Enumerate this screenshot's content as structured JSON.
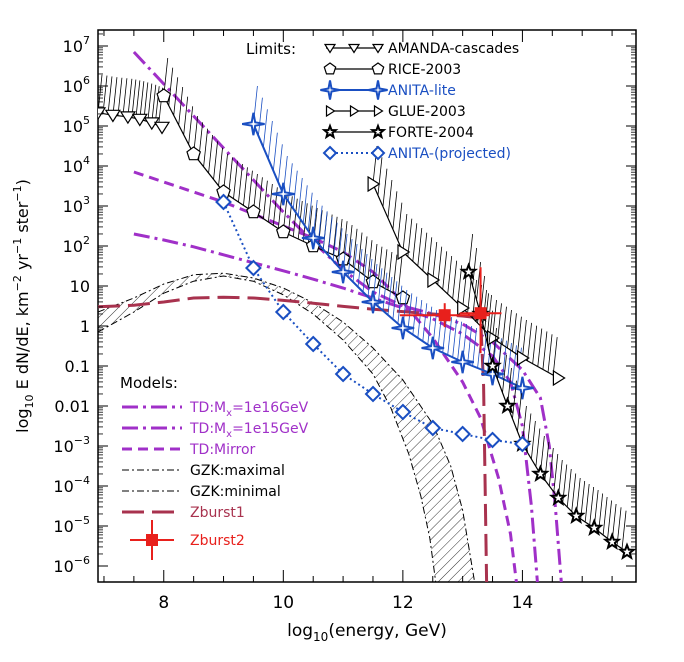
{
  "chart_data": {
    "type": "line",
    "title": "",
    "xlabel": "log₁₀(energy, GeV)",
    "ylabel": "log₁₀ E dN/dE, km⁻² yr⁻¹ ster⁻¹",
    "xlim": [
      6.9,
      15.9
    ],
    "ylim": [
      -6.4,
      7.4
    ],
    "yscale": "log10",
    "x_ticks": [
      8,
      10,
      12,
      14
    ],
    "x_tick_labels": [
      "8",
      "10",
      "12",
      "14"
    ],
    "y_tick_labels": [
      {
        "exp": 7,
        "base": "10",
        "sup": "7"
      },
      {
        "exp": 6,
        "base": "10",
        "sup": "6"
      },
      {
        "exp": 5,
        "base": "10",
        "sup": "5"
      },
      {
        "exp": 4,
        "base": "10",
        "sup": "4"
      },
      {
        "exp": 3,
        "base": "10",
        "sup": "3"
      },
      {
        "exp": 2,
        "base": "10",
        "sup": "2"
      },
      {
        "exp": 1,
        "base": "10",
        "sup": ""
      },
      {
        "exp": 0,
        "base": "1",
        "sup": ""
      },
      {
        "exp": -1,
        "base": "0.1",
        "sup": ""
      },
      {
        "exp": -2,
        "base": "0.01",
        "sup": ""
      },
      {
        "exp": -3,
        "base": "10",
        "sup": "−3"
      },
      {
        "exp": -4,
        "base": "10",
        "sup": "−4"
      },
      {
        "exp": -5,
        "base": "10",
        "sup": "−5"
      },
      {
        "exp": -6,
        "base": "10",
        "sup": "−6"
      }
    ],
    "legend_limits_title": "Limits:",
    "legend_models_title": "Models:",
    "limits": [
      {
        "name": "AMANDA-cascades",
        "color": "#000000",
        "marker": "triangle-down",
        "dash": "solid",
        "points": [
          [
            6.9,
            5.33
          ],
          [
            7.15,
            5.27
          ],
          [
            7.4,
            5.23
          ],
          [
            7.6,
            5.17
          ],
          [
            7.8,
            5.08
          ],
          [
            7.97,
            4.97
          ]
        ]
      },
      {
        "name": "RICE-2003",
        "color": "#000000",
        "marker": "pentagon",
        "dash": "solid",
        "points": [
          [
            8.0,
            5.75
          ],
          [
            8.5,
            4.3
          ],
          [
            9.0,
            3.35
          ],
          [
            9.5,
            2.85
          ],
          [
            10.0,
            2.35
          ],
          [
            10.5,
            2.0
          ],
          [
            11.0,
            1.67
          ],
          [
            11.5,
            1.1
          ],
          [
            12.0,
            0.7
          ]
        ]
      },
      {
        "name": "ANITA-lite",
        "color": "#1a4fc2",
        "marker": "star4",
        "dash": "solid",
        "points": [
          [
            9.5,
            5.05
          ],
          [
            10.0,
            3.3
          ],
          [
            10.5,
            2.2
          ],
          [
            11.0,
            1.35
          ],
          [
            11.5,
            0.6
          ],
          [
            12.0,
            -0.05
          ],
          [
            12.5,
            -0.55
          ],
          [
            13.0,
            -0.9
          ],
          [
            13.5,
            -1.2
          ],
          [
            14.0,
            -1.55
          ]
        ]
      },
      {
        "name": "GLUE-2003",
        "color": "#000000",
        "marker": "triangle-right",
        "dash": "solid",
        "points": [
          [
            11.5,
            3.55
          ],
          [
            12.0,
            1.85
          ],
          [
            12.5,
            1.15
          ],
          [
            13.0,
            0.45
          ],
          [
            13.5,
            -0.3
          ],
          [
            14.0,
            -0.8
          ],
          [
            14.6,
            -1.3
          ]
        ]
      },
      {
        "name": "FORTE-2004",
        "color": "#000000",
        "marker": "star5",
        "dash": "solid",
        "points": [
          [
            13.1,
            1.35
          ],
          [
            13.3,
            0.3
          ],
          [
            13.5,
            -1.0
          ],
          [
            13.75,
            -2.0
          ],
          [
            14.0,
            -2.95
          ],
          [
            14.3,
            -3.7
          ],
          [
            14.6,
            -4.3
          ],
          [
            14.9,
            -4.75
          ],
          [
            15.2,
            -5.05
          ],
          [
            15.5,
            -5.4
          ],
          [
            15.75,
            -5.65
          ]
        ]
      },
      {
        "name": "ANITA-(projected)",
        "color": "#1a4fc2",
        "marker": "diamond",
        "dash": "dotted",
        "points": [
          [
            9.0,
            3.1
          ],
          [
            9.5,
            1.45
          ],
          [
            10.0,
            0.35
          ],
          [
            10.5,
            -0.45
          ],
          [
            11.0,
            -1.2
          ],
          [
            11.5,
            -1.7
          ],
          [
            12.0,
            -2.15
          ],
          [
            12.5,
            -2.55
          ],
          [
            13.0,
            -2.7
          ],
          [
            13.5,
            -2.85
          ],
          [
            14.0,
            -2.95
          ]
        ]
      }
    ],
    "models": [
      {
        "name": "TD:Mₓ=1e16GeV",
        "label_main": "TD:M",
        "label_sub": "x",
        "label_rest": "=1e16GeV",
        "color": "#a030c8",
        "dash": "dashdot",
        "width": 3,
        "points": [
          [
            7.5,
            6.85
          ],
          [
            8.0,
            6.05
          ],
          [
            8.5,
            5.25
          ],
          [
            9.0,
            4.45
          ],
          [
            9.5,
            3.65
          ],
          [
            10.0,
            2.85
          ],
          [
            10.5,
            2.1
          ],
          [
            11.0,
            1.4
          ],
          [
            11.5,
            0.85
          ],
          [
            12.0,
            0.5
          ],
          [
            12.5,
            0.3
          ],
          [
            13.0,
            0.05
          ],
          [
            13.5,
            -0.4
          ],
          [
            14.0,
            -1.1
          ],
          [
            14.3,
            -1.8
          ],
          [
            14.45,
            -3.0
          ],
          [
            14.55,
            -4.5
          ],
          [
            14.65,
            -6.4
          ]
        ]
      },
      {
        "name": "TD:Mₓ=1e15GeV",
        "label_main": "TD:M",
        "label_sub": "x",
        "label_rest": "=1e15GeV",
        "color": "#a030c8",
        "dash": "dashdot",
        "width": 3,
        "points": [
          [
            7.5,
            2.3
          ],
          [
            8.0,
            2.15
          ],
          [
            8.5,
            1.98
          ],
          [
            9.0,
            1.78
          ],
          [
            9.5,
            1.58
          ],
          [
            10.0,
            1.38
          ],
          [
            10.5,
            1.17
          ],
          [
            11.0,
            0.95
          ],
          [
            11.5,
            0.7
          ],
          [
            12.0,
            0.45
          ],
          [
            12.5,
            0.18
          ],
          [
            13.0,
            -0.2
          ],
          [
            13.5,
            -0.75
          ],
          [
            13.8,
            -1.4
          ],
          [
            14.0,
            -2.5
          ],
          [
            14.15,
            -4.5
          ],
          [
            14.25,
            -6.4
          ]
        ]
      },
      {
        "name": "TD:Mirror",
        "label_main": "TD:Mirror",
        "label_sub": "",
        "label_rest": "",
        "color": "#a030c8",
        "dash": "dashed",
        "width": 3,
        "points": [
          [
            7.5,
            3.85
          ],
          [
            8.0,
            3.6
          ],
          [
            8.5,
            3.35
          ],
          [
            9.0,
            3.1
          ],
          [
            9.5,
            2.8
          ],
          [
            10.0,
            2.5
          ],
          [
            10.5,
            2.2
          ],
          [
            11.0,
            1.85
          ],
          [
            11.5,
            1.35
          ],
          [
            12.0,
            0.6
          ],
          [
            12.5,
            -0.3
          ],
          [
            13.0,
            -1.4
          ],
          [
            13.3,
            -2.3
          ],
          [
            13.6,
            -3.8
          ],
          [
            13.8,
            -5.2
          ],
          [
            13.9,
            -6.4
          ]
        ]
      },
      {
        "name": "GZK:maximal",
        "label_main": "GZK:maximal",
        "label_sub": "",
        "label_rest": "",
        "color": "#000000",
        "dash": "dashdot-thin",
        "width": 1,
        "points": [
          [
            6.9,
            0.35
          ],
          [
            7.5,
            0.7
          ],
          [
            8.0,
            1.05
          ],
          [
            8.5,
            1.28
          ],
          [
            9.0,
            1.32
          ],
          [
            9.5,
            1.2
          ],
          [
            10.0,
            0.95
          ],
          [
            10.5,
            0.58
          ],
          [
            11.0,
            0.1
          ],
          [
            11.5,
            -0.55
          ],
          [
            12.0,
            -1.35
          ],
          [
            12.5,
            -2.45
          ],
          [
            12.8,
            -3.5
          ],
          [
            13.0,
            -4.6
          ],
          [
            13.1,
            -5.5
          ],
          [
            13.2,
            -6.4
          ]
        ]
      },
      {
        "name": "GZK:minimal",
        "label_main": "GZK:minimal",
        "label_sub": "",
        "label_rest": "",
        "color": "#000000",
        "dash": "dashdot-thin",
        "width": 1,
        "points": [
          [
            6.9,
            -0.15
          ],
          [
            7.5,
            0.35
          ],
          [
            8.0,
            0.82
          ],
          [
            8.5,
            1.12
          ],
          [
            9.0,
            1.25
          ],
          [
            9.5,
            1.12
          ],
          [
            10.0,
            0.78
          ],
          [
            10.5,
            0.3
          ],
          [
            11.0,
            -0.35
          ],
          [
            11.5,
            -1.2
          ],
          [
            11.8,
            -2.05
          ],
          [
            12.1,
            -3.2
          ],
          [
            12.3,
            -4.25
          ],
          [
            12.45,
            -5.3
          ],
          [
            12.55,
            -6.4
          ]
        ]
      },
      {
        "name": "Zburst1",
        "label_main": "Zburst1",
        "label_sub": "",
        "label_rest": "",
        "color": "#a8324e",
        "dash": "longdash",
        "width": 3,
        "points": [
          [
            6.9,
            0.48
          ],
          [
            7.5,
            0.52
          ],
          [
            8.0,
            0.6
          ],
          [
            8.5,
            0.7
          ],
          [
            9.0,
            0.72
          ],
          [
            9.5,
            0.7
          ],
          [
            10.0,
            0.64
          ],
          [
            10.5,
            0.57
          ],
          [
            11.0,
            0.49
          ],
          [
            11.5,
            0.42
          ],
          [
            12.0,
            0.36
          ],
          [
            12.5,
            0.3
          ],
          [
            13.0,
            0.25
          ],
          [
            13.3,
            0.2
          ],
          [
            13.35,
            -1.5
          ],
          [
            13.4,
            -6.4
          ]
        ]
      }
    ],
    "zburst2": {
      "name": "Zburst2",
      "color": "#e8201c",
      "points": [
        {
          "x": 12.7,
          "y": 0.27,
          "xerr": 0.75,
          "yerr_lo": 0.3,
          "yerr_hi": 0.3
        },
        {
          "x": 13.3,
          "y": 0.32,
          "xerr": 0.35,
          "yerr_lo": 1.0,
          "yerr_hi": 1.15
        }
      ]
    }
  }
}
